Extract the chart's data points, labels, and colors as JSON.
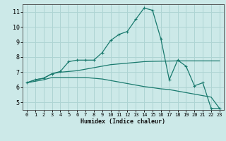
{
  "xlabel": "Humidex (Indice chaleur)",
  "background_color": "#cce9e8",
  "grid_color": "#aed4d3",
  "line_color": "#1a7a6e",
  "xlim": [
    -0.5,
    23.5
  ],
  "ylim": [
    4.5,
    11.5
  ],
  "yticks": [
    5,
    6,
    7,
    8,
    9,
    10,
    11
  ],
  "xticks": [
    0,
    1,
    2,
    3,
    4,
    5,
    6,
    7,
    8,
    9,
    10,
    11,
    12,
    13,
    14,
    15,
    16,
    17,
    18,
    19,
    20,
    21,
    22,
    23
  ],
  "curve1_x": [
    0,
    1,
    2,
    3,
    4,
    5,
    6,
    7,
    8,
    9,
    10,
    11,
    12,
    13,
    14,
    15,
    16,
    17,
    18,
    19,
    20,
    21,
    22,
    23
  ],
  "curve1_y": [
    6.3,
    6.5,
    6.6,
    6.9,
    7.05,
    7.7,
    7.8,
    7.8,
    7.8,
    8.3,
    9.1,
    9.5,
    9.7,
    10.5,
    11.25,
    11.1,
    9.2,
    6.5,
    7.8,
    7.4,
    6.1,
    6.3,
    4.6,
    4.6
  ],
  "curve2_x": [
    0,
    1,
    2,
    3,
    4,
    5,
    6,
    7,
    8,
    9,
    10,
    11,
    12,
    13,
    14,
    15,
    16,
    17,
    18,
    19,
    20,
    21,
    22,
    23
  ],
  "curve2_y": [
    6.3,
    6.5,
    6.6,
    6.9,
    7.0,
    7.05,
    7.1,
    7.2,
    7.3,
    7.4,
    7.5,
    7.55,
    7.6,
    7.65,
    7.7,
    7.72,
    7.73,
    7.74,
    7.75,
    7.75,
    7.75,
    7.75,
    7.75,
    7.75
  ],
  "curve3_x": [
    0,
    1,
    2,
    3,
    4,
    5,
    6,
    7,
    8,
    9,
    10,
    11,
    12,
    13,
    14,
    15,
    16,
    17,
    18,
    19,
    20,
    21,
    22,
    23
  ],
  "curve3_y": [
    6.3,
    6.4,
    6.5,
    6.65,
    6.65,
    6.65,
    6.65,
    6.65,
    6.6,
    6.55,
    6.45,
    6.35,
    6.25,
    6.15,
    6.05,
    5.98,
    5.9,
    5.85,
    5.75,
    5.65,
    5.55,
    5.45,
    5.35,
    4.6
  ]
}
